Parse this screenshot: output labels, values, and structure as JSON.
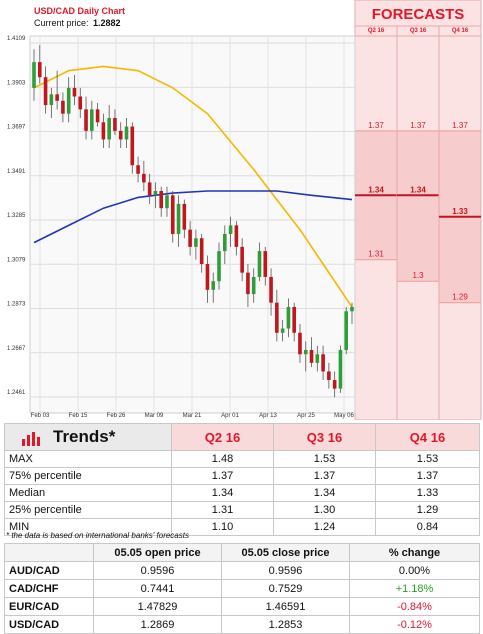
{
  "chart_data": {
    "type": "candlestick",
    "title": "USD/CAD Daily Chart",
    "current_price_label": "Current price:",
    "current_price": "1.2882",
    "y_ticks": [
      "1.4109",
      "1.3903",
      "1.3697",
      "1.3491",
      "1.3285",
      "1.3079",
      "1.2873",
      "1.2667",
      "1.2461"
    ],
    "ylim": [
      1.2461,
      1.4109
    ],
    "x_ticks": [
      "Feb 03",
      "Feb 15",
      "Feb 26",
      "Mar 09",
      "Mar 21",
      "Apr 01",
      "Apr 13",
      "Apr 25",
      "May 06"
    ],
    "candles": [
      {
        "o": 1.39,
        "h": 1.408,
        "l": 1.384,
        "c": 1.402
      },
      {
        "o": 1.402,
        "h": 1.41,
        "l": 1.392,
        "c": 1.395
      },
      {
        "o": 1.395,
        "h": 1.4,
        "l": 1.378,
        "c": 1.382
      },
      {
        "o": 1.382,
        "h": 1.39,
        "l": 1.376,
        "c": 1.387
      },
      {
        "o": 1.387,
        "h": 1.398,
        "l": 1.38,
        "c": 1.384
      },
      {
        "o": 1.384,
        "h": 1.388,
        "l": 1.374,
        "c": 1.378
      },
      {
        "o": 1.378,
        "h": 1.395,
        "l": 1.374,
        "c": 1.39
      },
      {
        "o": 1.39,
        "h": 1.396,
        "l": 1.382,
        "c": 1.386
      },
      {
        "o": 1.386,
        "h": 1.39,
        "l": 1.376,
        "c": 1.38
      },
      {
        "o": 1.38,
        "h": 1.386,
        "l": 1.366,
        "c": 1.37
      },
      {
        "o": 1.37,
        "h": 1.384,
        "l": 1.366,
        "c": 1.38
      },
      {
        "o": 1.38,
        "h": 1.383,
        "l": 1.372,
        "c": 1.374
      },
      {
        "o": 1.374,
        "h": 1.378,
        "l": 1.362,
        "c": 1.366
      },
      {
        "o": 1.366,
        "h": 1.382,
        "l": 1.362,
        "c": 1.376
      },
      {
        "o": 1.376,
        "h": 1.38,
        "l": 1.368,
        "c": 1.37
      },
      {
        "o": 1.37,
        "h": 1.374,
        "l": 1.362,
        "c": 1.366
      },
      {
        "o": 1.366,
        "h": 1.376,
        "l": 1.362,
        "c": 1.372
      },
      {
        "o": 1.372,
        "h": 1.374,
        "l": 1.35,
        "c": 1.354
      },
      {
        "o": 1.354,
        "h": 1.358,
        "l": 1.346,
        "c": 1.35
      },
      {
        "o": 1.35,
        "h": 1.356,
        "l": 1.342,
        "c": 1.346
      },
      {
        "o": 1.346,
        "h": 1.35,
        "l": 1.336,
        "c": 1.34
      },
      {
        "o": 1.34,
        "h": 1.346,
        "l": 1.334,
        "c": 1.342
      },
      {
        "o": 1.342,
        "h": 1.344,
        "l": 1.33,
        "c": 1.334
      },
      {
        "o": 1.334,
        "h": 1.344,
        "l": 1.33,
        "c": 1.34
      },
      {
        "o": 1.34,
        "h": 1.342,
        "l": 1.318,
        "c": 1.322
      },
      {
        "o": 1.322,
        "h": 1.34,
        "l": 1.316,
        "c": 1.336
      },
      {
        "o": 1.336,
        "h": 1.338,
        "l": 1.32,
        "c": 1.324
      },
      {
        "o": 1.324,
        "h": 1.328,
        "l": 1.312,
        "c": 1.316
      },
      {
        "o": 1.316,
        "h": 1.324,
        "l": 1.31,
        "c": 1.32
      },
      {
        "o": 1.32,
        "h": 1.322,
        "l": 1.304,
        "c": 1.308
      },
      {
        "o": 1.308,
        "h": 1.312,
        "l": 1.29,
        "c": 1.296
      },
      {
        "o": 1.296,
        "h": 1.304,
        "l": 1.29,
        "c": 1.3
      },
      {
        "o": 1.3,
        "h": 1.318,
        "l": 1.296,
        "c": 1.314
      },
      {
        "o": 1.314,
        "h": 1.326,
        "l": 1.308,
        "c": 1.322
      },
      {
        "o": 1.322,
        "h": 1.33,
        "l": 1.316,
        "c": 1.326
      },
      {
        "o": 1.326,
        "h": 1.328,
        "l": 1.312,
        "c": 1.316
      },
      {
        "o": 1.316,
        "h": 1.32,
        "l": 1.3,
        "c": 1.304
      },
      {
        "o": 1.304,
        "h": 1.308,
        "l": 1.288,
        "c": 1.294
      },
      {
        "o": 1.294,
        "h": 1.306,
        "l": 1.29,
        "c": 1.302
      },
      {
        "o": 1.302,
        "h": 1.318,
        "l": 1.3,
        "c": 1.314
      },
      {
        "o": 1.314,
        "h": 1.316,
        "l": 1.298,
        "c": 1.302
      },
      {
        "o": 1.302,
        "h": 1.306,
        "l": 1.284,
        "c": 1.29
      },
      {
        "o": 1.29,
        "h": 1.296,
        "l": 1.272,
        "c": 1.276
      },
      {
        "o": 1.276,
        "h": 1.282,
        "l": 1.272,
        "c": 1.278
      },
      {
        "o": 1.278,
        "h": 1.292,
        "l": 1.274,
        "c": 1.288
      },
      {
        "o": 1.288,
        "h": 1.29,
        "l": 1.272,
        "c": 1.276
      },
      {
        "o": 1.276,
        "h": 1.28,
        "l": 1.262,
        "c": 1.266
      },
      {
        "o": 1.266,
        "h": 1.272,
        "l": 1.258,
        "c": 1.268
      },
      {
        "o": 1.268,
        "h": 1.274,
        "l": 1.26,
        "c": 1.262
      },
      {
        "o": 1.262,
        "h": 1.27,
        "l": 1.258,
        "c": 1.266
      },
      {
        "o": 1.266,
        "h": 1.27,
        "l": 1.254,
        "c": 1.258
      },
      {
        "o": 1.258,
        "h": 1.262,
        "l": 1.25,
        "c": 1.254
      },
      {
        "o": 1.254,
        "h": 1.258,
        "l": 1.246,
        "c": 1.25
      },
      {
        "o": 1.25,
        "h": 1.27,
        "l": 1.248,
        "c": 1.268
      },
      {
        "o": 1.268,
        "h": 1.288,
        "l": 1.266,
        "c": 1.286
      },
      {
        "o": 1.286,
        "h": 1.29,
        "l": 1.28,
        "c": 1.288
      }
    ],
    "series": [
      {
        "type": "moving-average",
        "color": "#f5b800",
        "points": [
          [
            0,
            1.39
          ],
          [
            6,
            1.398
          ],
          [
            12,
            1.4
          ],
          [
            18,
            1.398
          ],
          [
            24,
            1.39
          ],
          [
            30,
            1.378
          ],
          [
            34,
            1.365
          ],
          [
            38,
            1.352
          ],
          [
            42,
            1.338
          ],
          [
            46,
            1.324
          ],
          [
            50,
            1.308
          ],
          [
            53,
            1.296
          ],
          [
            55,
            1.288
          ]
        ]
      },
      {
        "type": "moving-average",
        "color": "#2233bb",
        "points": [
          [
            0,
            1.318
          ],
          [
            6,
            1.326
          ],
          [
            12,
            1.334
          ],
          [
            18,
            1.339
          ],
          [
            24,
            1.341
          ],
          [
            30,
            1.342
          ],
          [
            36,
            1.342
          ],
          [
            42,
            1.342
          ],
          [
            48,
            1.34
          ],
          [
            55,
            1.338
          ]
        ]
      }
    ]
  },
  "forecasts": {
    "title": "FORECASTS",
    "quarters": [
      {
        "label": "Q2 16",
        "high": "1.37",
        "median": "1.34",
        "low": "1.31",
        "high_v": 1.37,
        "median_v": 1.34,
        "low_v": 1.31
      },
      {
        "label": "Q3 16",
        "high": "1.37",
        "median": "1.34",
        "low": "1.3",
        "high_v": 1.37,
        "median_v": 1.34,
        "low_v": 1.3
      },
      {
        "label": "Q4 16",
        "high": "1.37",
        "median": "1.33",
        "low": "1.29",
        "high_v": 1.37,
        "median_v": 1.33,
        "low_v": 1.29
      }
    ]
  },
  "trends": {
    "title": "Trends*",
    "quarters": [
      "Q2 16",
      "Q3 16",
      "Q4 16"
    ],
    "rows": [
      {
        "label": "MAX",
        "values": [
          "1.48",
          "1.53",
          "1.53"
        ]
      },
      {
        "label": "75% percentile",
        "values": [
          "1.37",
          "1.37",
          "1.37"
        ]
      },
      {
        "label": "Median",
        "values": [
          "1.34",
          "1.34",
          "1.33"
        ]
      },
      {
        "label": "25% percentile",
        "values": [
          "1.31",
          "1.30",
          "1.29"
        ]
      },
      {
        "label": "MIN",
        "values": [
          "1.10",
          "1.24",
          "0.84"
        ]
      }
    ],
    "note": "* the data is based on international banks' forecasts"
  },
  "fx_table": {
    "headers": [
      "",
      "05.05 open price",
      "05.05 close price",
      "% change"
    ],
    "rows": [
      {
        "pair": "AUD/CAD",
        "open": "0.9596",
        "close": "0.9596",
        "change": "0.00%",
        "dir": "flat"
      },
      {
        "pair": "CAD/CHF",
        "open": "0.7441",
        "close": "0.7529",
        "change": "+1.18%",
        "dir": "up"
      },
      {
        "pair": "EUR/CAD",
        "open": "1.47829",
        "close": "1.46591",
        "change": "-0.84%",
        "dir": "down"
      },
      {
        "pair": "USD/CAD",
        "open": "1.2869",
        "close": "1.2853",
        "change": "-0.12%",
        "dir": "down"
      }
    ]
  },
  "colors": {
    "accent": "#e0182a",
    "bull": "#2f9e3a",
    "bear": "#c0161e",
    "forecast_bg": "#f9dcdc"
  }
}
